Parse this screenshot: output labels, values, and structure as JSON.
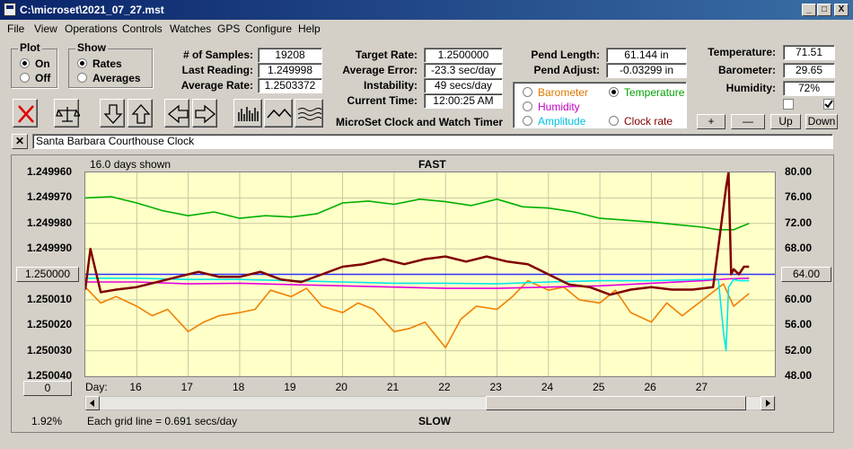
{
  "window": {
    "title": "C:\\microset\\2021_07_27.mst",
    "controls": {
      "minimize": "_",
      "maximize": "□",
      "close": "X"
    }
  },
  "menu": [
    "File",
    "View",
    "Operations",
    "Controls",
    "Watches",
    "GPS",
    "Configure",
    "Help"
  ],
  "plot_group": {
    "title": "Plot",
    "options": [
      {
        "label": "On",
        "selected": true
      },
      {
        "label": "Off",
        "selected": false
      }
    ]
  },
  "show_group": {
    "title": "Show",
    "options": [
      {
        "label": "Rates",
        "selected": true
      },
      {
        "label": "Averages",
        "selected": false
      }
    ]
  },
  "stats": {
    "samples_label": "# of Samples:",
    "samples": "19208",
    "last_label": "Last Reading:",
    "last": "1.249998",
    "avg_label": "Average Rate:",
    "avg": "1.2503372"
  },
  "rates": {
    "target_label": "Target Rate:",
    "target": "1.2500000",
    "error_label": "Average Error:",
    "error": "-23.3 sec/day",
    "instab_label": "Instability:",
    "instab": "49 secs/day",
    "time_label": "Current Time:",
    "time": "12:00:25 AM",
    "app_title": "MicroSet Clock and Watch Timer"
  },
  "pend": {
    "length_label": "Pend Length:",
    "length": "61.144 in",
    "adjust_label": "Pend Adjust:",
    "adjust": "-0.03299 in"
  },
  "env": {
    "temp_label": "Temperature:",
    "temp": "71.51",
    "baro_label": "Barometer:",
    "baro": "29.65",
    "hum_label": "Humidity:",
    "hum": "72%"
  },
  "overlay_options": [
    {
      "label": "Barometer",
      "color": "#e07800",
      "selected": false
    },
    {
      "label": "Temperature",
      "color": "#00a000",
      "selected": true
    },
    {
      "label": "Humidity",
      "color": "#c000c0",
      "selected": false
    },
    {
      "label": "Clock rate",
      "color": "#800000",
      "selected": false
    },
    {
      "label": "Amplitude",
      "color": "#00c0e0",
      "selected": false
    }
  ],
  "scale_buttons": [
    "+",
    "—",
    "Up",
    "Down"
  ],
  "clock_name": "Santa Barbara Courthouse Clock",
  "chart_header": {
    "days_shown": "16.0 days shown",
    "top": "FAST",
    "bottom": "SLOW",
    "grid_note": "Each grid line = 0.691 secs/day",
    "percent": "1.92%",
    "left_button": "1.250000",
    "right_button": "64.00",
    "bottom_button": "0"
  },
  "colors": {
    "plot_bg": "#ffffc8",
    "rate": "#800000",
    "temp": "#00b000",
    "baro": "#f08000",
    "hum": "#e000e0",
    "amp": "#00e8e8",
    "target": "#3030ff"
  },
  "chart_data": {
    "type": "line",
    "xlabel": "Day:",
    "x_ticks": [
      "16",
      "17",
      "18",
      "19",
      "20",
      "21",
      "22",
      "23",
      "24",
      "25",
      "26",
      "27"
    ],
    "xlim": [
      15.0,
      28.4
    ],
    "y_left_ticks": [
      "1.249960",
      "1.249970",
      "1.249980",
      "1.249990",
      "1.250000",
      "1.250010",
      "1.250020",
      "1.250030",
      "1.250040"
    ],
    "y_left_lim": [
      1.24996,
      1.25004
    ],
    "y_right_ticks": [
      "80.00",
      "76.00",
      "72.00",
      "68.00",
      "64.00",
      "60.00",
      "56.00",
      "52.00",
      "48.00"
    ],
    "y_right_lim": [
      48,
      80
    ],
    "target": 1.25,
    "series": [
      {
        "name": "Temperature",
        "axis": "right",
        "color": "#00b000",
        "x": [
          15.0,
          15.5,
          16.0,
          16.5,
          17.0,
          17.5,
          18.0,
          18.5,
          19.0,
          19.5,
          20.0,
          20.5,
          21.0,
          21.5,
          22.0,
          22.5,
          23.0,
          23.5,
          24.0,
          24.5,
          25.0,
          25.5,
          26.0,
          26.5,
          27.0,
          27.3,
          27.6,
          27.9
        ],
        "y": [
          76.0,
          76.2,
          75.2,
          74.0,
          73.2,
          73.8,
          72.8,
          73.2,
          73.0,
          73.5,
          75.2,
          75.5,
          75.0,
          75.8,
          75.4,
          74.8,
          75.8,
          74.6,
          74.4,
          73.8,
          72.8,
          72.5,
          72.2,
          71.8,
          71.4,
          71.0,
          71.0,
          72.0
        ]
      },
      {
        "name": "Clock rate",
        "axis": "left",
        "color": "#800000",
        "x": [
          15.0,
          15.1,
          15.3,
          15.6,
          16.0,
          16.4,
          16.8,
          17.2,
          17.6,
          18.0,
          18.4,
          18.8,
          19.2,
          19.6,
          20.0,
          20.4,
          20.8,
          21.2,
          21.6,
          22.0,
          22.4,
          22.8,
          23.2,
          23.6,
          24.0,
          24.4,
          24.8,
          25.2,
          25.6,
          26.0,
          26.4,
          26.8,
          27.2,
          27.45,
          27.5,
          27.55,
          27.6,
          27.7,
          27.8,
          27.9
        ],
        "y": [
          1.250006,
          1.24999,
          1.250007,
          1.250006,
          1.250005,
          1.250003,
          1.250001,
          1.249999,
          1.250001,
          1.250001,
          1.249999,
          1.250002,
          1.250003,
          1.25,
          1.249997,
          1.249996,
          1.249994,
          1.249996,
          1.249994,
          1.249993,
          1.249995,
          1.249993,
          1.249995,
          1.249996,
          1.25,
          1.250004,
          1.250005,
          1.250008,
          1.250006,
          1.250005,
          1.250006,
          1.250006,
          1.250005,
          1.249966,
          1.24996,
          1.25,
          1.249998,
          1.25,
          1.249997,
          1.249997
        ]
      },
      {
        "name": "Humidity",
        "axis": "right",
        "color": "#e000e0",
        "x": [
          15.0,
          16.0,
          17.0,
          18.0,
          19.0,
          20.0,
          21.0,
          22.0,
          23.0,
          24.0,
          25.0,
          26.0,
          27.0,
          27.5,
          27.9
        ],
        "y": [
          62.8,
          62.8,
          62.5,
          62.6,
          62.4,
          62.2,
          62.0,
          61.8,
          61.8,
          62.0,
          62.2,
          62.6,
          63.0,
          63.3,
          63.4
        ]
      },
      {
        "name": "Amplitude",
        "axis": "right",
        "color": "#00e8e8",
        "x": [
          15.0,
          16.0,
          17.0,
          18.0,
          19.0,
          20.0,
          21.0,
          22.0,
          23.0,
          24.0,
          25.0,
          26.0,
          27.0,
          27.3,
          27.4,
          27.45,
          27.5,
          27.6,
          27.7,
          27.9
        ],
        "y": [
          63.4,
          63.4,
          63.2,
          63.2,
          63.0,
          62.8,
          62.6,
          62.6,
          62.5,
          62.8,
          63.0,
          63.0,
          63.2,
          63.3,
          55.0,
          52.0,
          62.0,
          63.2,
          63.0,
          63.0
        ]
      },
      {
        "name": "Barometer",
        "axis": "right",
        "color": "#f08000",
        "x": [
          15.0,
          15.3,
          15.6,
          16.0,
          16.3,
          16.6,
          17.0,
          17.3,
          17.6,
          18.0,
          18.3,
          18.6,
          19.0,
          19.3,
          19.6,
          20.0,
          20.3,
          20.6,
          21.0,
          21.3,
          21.6,
          22.0,
          22.3,
          22.6,
          23.0,
          23.3,
          23.6,
          24.0,
          24.3,
          24.6,
          25.0,
          25.3,
          25.6,
          26.0,
          26.3,
          26.6,
          27.0,
          27.4,
          27.6,
          27.9
        ],
        "y": [
          62.0,
          59.5,
          60.5,
          59.0,
          57.5,
          58.5,
          55.0,
          56.5,
          57.5,
          58.0,
          58.5,
          61.5,
          60.5,
          61.8,
          59.0,
          58.0,
          59.5,
          58.5,
          55.0,
          55.5,
          56.5,
          52.5,
          57.0,
          59.0,
          58.5,
          60.5,
          63.0,
          61.5,
          62.0,
          60.0,
          59.5,
          61.5,
          58.0,
          56.5,
          59.5,
          57.5,
          60.0,
          62.5,
          59.0,
          61.0
        ]
      }
    ]
  }
}
